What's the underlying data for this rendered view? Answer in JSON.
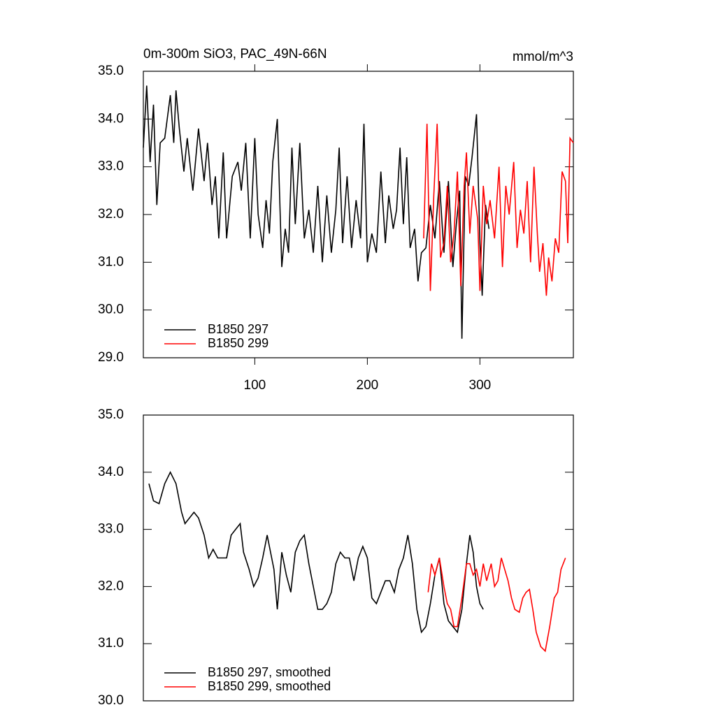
{
  "chart_data": [
    {
      "type": "line",
      "title": "0m-300m SiO3, PAC_49N-66N",
      "units": "mmol/m^3",
      "xlim": [
        1,
        383
      ],
      "xticks": [
        100,
        200,
        300
      ],
      "ylim": [
        29,
        35
      ],
      "yticks": [
        {
          "value": 29,
          "label": "29.0"
        },
        {
          "value": 30,
          "label": "30.0"
        },
        {
          "value": 31,
          "label": "31.0"
        },
        {
          "value": 32,
          "label": "32.0"
        },
        {
          "value": 33,
          "label": "33.0"
        },
        {
          "value": 34,
          "label": "34.0"
        },
        {
          "value": 35,
          "label": "35.0"
        }
      ],
      "legend": "lower left",
      "series": [
        {
          "name": "B1850 297",
          "color": "#000000",
          "x": [
            1,
            4,
            7,
            10,
            13,
            16,
            20,
            25,
            28,
            30,
            33,
            37,
            40,
            45,
            50,
            55,
            58,
            62,
            65,
            68,
            72,
            75,
            80,
            85,
            88,
            92,
            96,
            100,
            103,
            107,
            110,
            113,
            116,
            120,
            124,
            127,
            130,
            133,
            136,
            140,
            144,
            148,
            152,
            156,
            160,
            164,
            168,
            172,
            175,
            178,
            182,
            186,
            190,
            194,
            197,
            200,
            204,
            208,
            212,
            216,
            219,
            223,
            226,
            229,
            232,
            235,
            238,
            242,
            245,
            248,
            252,
            256,
            260,
            264,
            268,
            272,
            276,
            279,
            282,
            284,
            287,
            290,
            293,
            297,
            300,
            302,
            305,
            308
          ],
          "values": [
            33.4,
            34.7,
            33.1,
            34.3,
            32.2,
            33.5,
            33.6,
            34.5,
            33.5,
            34.6,
            33.8,
            32.9,
            33.6,
            32.5,
            33.8,
            32.7,
            33.5,
            32.2,
            32.8,
            31.5,
            33.3,
            31.5,
            32.8,
            33.1,
            32.5,
            33.5,
            31.5,
            33.6,
            32.0,
            31.3,
            32.3,
            31.6,
            33.1,
            34.0,
            30.9,
            31.7,
            31.2,
            33.4,
            31.8,
            33.5,
            31.5,
            32.1,
            31.2,
            32.6,
            31.0,
            32.4,
            31.2,
            32.1,
            33.4,
            31.4,
            32.8,
            31.3,
            32.3,
            31.5,
            33.9,
            31.0,
            31.6,
            31.2,
            32.9,
            31.4,
            32.4,
            31.7,
            32.1,
            33.4,
            31.8,
            33.2,
            31.3,
            31.7,
            30.6,
            31.2,
            31.3,
            32.2,
            31.5,
            32.7,
            31.2,
            32.7,
            30.9,
            31.8,
            32.5,
            29.4,
            32.8,
            32.6,
            33.2,
            34.1,
            31.4,
            30.3,
            32.2,
            31.7
          ]
        },
        {
          "name": "B1850 299",
          "color": "#ff0000",
          "x": [
            250,
            253,
            256,
            259,
            262,
            265,
            268,
            271,
            274,
            277,
            280,
            283,
            286,
            288,
            291,
            294,
            298,
            300,
            303,
            306,
            309,
            313,
            317,
            320,
            323,
            326,
            330,
            333,
            336,
            339,
            342,
            345,
            348,
            351,
            353,
            356,
            359,
            361,
            364,
            367,
            370,
            373,
            376,
            378,
            380,
            383
          ],
          "values": [
            31.5,
            33.9,
            30.4,
            32.4,
            33.9,
            31.1,
            31.4,
            32.6,
            31.0,
            31.6,
            32.9,
            30.5,
            32.6,
            33.3,
            31.6,
            32.6,
            31.9,
            30.4,
            32.6,
            31.8,
            32.3,
            31.5,
            33.0,
            30.9,
            32.6,
            32.0,
            33.1,
            31.3,
            32.1,
            31.6,
            32.7,
            31.0,
            33.0,
            31.6,
            30.8,
            31.4,
            30.3,
            31.1,
            30.6,
            31.5,
            31.2,
            32.9,
            32.7,
            31.4,
            33.6,
            33.5
          ]
        }
      ]
    },
    {
      "type": "line",
      "xlim": [
        1,
        383
      ],
      "ylim": [
        30,
        35
      ],
      "yticks": [
        {
          "value": 30,
          "label": "30.0"
        },
        {
          "value": 31,
          "label": "31.0"
        },
        {
          "value": 32,
          "label": "32.0"
        },
        {
          "value": 33,
          "label": "33.0"
        },
        {
          "value": 34,
          "label": "34.0"
        },
        {
          "value": 35,
          "label": "35.0"
        }
      ],
      "legend": "lower left",
      "series": [
        {
          "name": "B1850 297, smoothed",
          "color": "#000000",
          "x": [
            6,
            10,
            15,
            20,
            25,
            30,
            35,
            38,
            42,
            46,
            50,
            55,
            59,
            63,
            67,
            71,
            75,
            79,
            83,
            87,
            90,
            95,
            99,
            103,
            107,
            111,
            113,
            117,
            120,
            124,
            128,
            132,
            136,
            140,
            144,
            148,
            152,
            156,
            160,
            164,
            168,
            172,
            176,
            180,
            184,
            188,
            192,
            196,
            200,
            204,
            208,
            212,
            216,
            220,
            224,
            228,
            232,
            236,
            240,
            244,
            248,
            252,
            256,
            260,
            264,
            268,
            272,
            276,
            280,
            284,
            288,
            291,
            294,
            297,
            300,
            303
          ],
          "values": [
            33.8,
            33.5,
            33.45,
            33.8,
            34.0,
            33.8,
            33.3,
            33.1,
            33.2,
            33.3,
            33.2,
            32.9,
            32.5,
            32.65,
            32.5,
            32.5,
            32.5,
            32.9,
            33.0,
            33.1,
            32.6,
            32.3,
            32.0,
            32.15,
            32.5,
            32.9,
            32.7,
            32.3,
            31.6,
            32.6,
            32.2,
            31.9,
            32.6,
            32.8,
            32.9,
            32.4,
            32.0,
            31.6,
            31.6,
            31.7,
            31.9,
            32.4,
            32.6,
            32.5,
            32.5,
            32.1,
            32.5,
            32.7,
            32.5,
            31.8,
            31.7,
            31.9,
            32.1,
            32.1,
            31.9,
            32.3,
            32.5,
            32.9,
            32.4,
            31.6,
            31.2,
            31.3,
            31.7,
            32.2,
            32.5,
            31.7,
            31.4,
            31.3,
            31.2,
            31.6,
            32.4,
            32.9,
            32.6,
            32.0,
            31.7,
            31.6
          ]
        },
        {
          "name": "B1850 299, smoothed",
          "color": "#ff0000",
          "x": [
            254,
            257,
            260,
            264,
            268,
            271,
            274,
            277,
            280,
            284,
            288,
            291,
            294,
            297,
            300,
            303,
            306,
            310,
            313,
            316,
            319,
            322,
            325,
            328,
            331,
            335,
            338,
            341,
            344,
            347,
            350,
            354,
            358,
            362,
            366,
            369,
            372,
            376
          ],
          "values": [
            31.9,
            32.4,
            32.2,
            32.5,
            32.0,
            31.7,
            31.6,
            31.3,
            31.3,
            31.8,
            32.4,
            32.4,
            32.2,
            32.3,
            32.0,
            32.4,
            32.1,
            32.4,
            32.0,
            32.1,
            32.5,
            32.3,
            32.1,
            31.8,
            31.6,
            31.55,
            31.8,
            31.9,
            31.95,
            31.6,
            31.2,
            30.95,
            30.87,
            31.3,
            31.8,
            31.9,
            32.3,
            32.5
          ]
        }
      ]
    }
  ]
}
